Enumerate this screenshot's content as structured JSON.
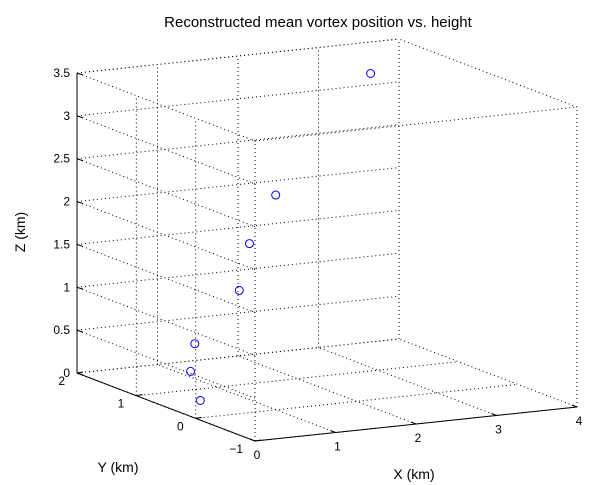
{
  "chart_data": {
    "type": "scatter",
    "projection": "3d",
    "title": "Reconstructed mean vortex position vs. height",
    "xlabel": "X (km)",
    "ylabel": "Y (km)",
    "zlabel": "Z (km)",
    "xlim": [
      0,
      4
    ],
    "ylim": [
      -1,
      2
    ],
    "zlim": [
      0,
      3.5
    ],
    "xticks": [
      "0",
      "1",
      "2",
      "3",
      "4"
    ],
    "yticks": [
      "−1",
      "0",
      "1",
      "2"
    ],
    "zticks": [
      "0",
      "0.5",
      "1",
      "1.5",
      "2",
      "2.5",
      "3",
      "3.5"
    ],
    "grid": true,
    "box": true,
    "marker": "circle-open",
    "color": "#0000ff",
    "points": [
      {
        "x": 0.5,
        "y": 0.6,
        "z": 0.0
      },
      {
        "x": 0.6,
        "y": 0.9,
        "z": 0.25
      },
      {
        "x": 0.8,
        "y": 1.1,
        "z": 0.5
      },
      {
        "x": 1.5,
        "y": 1.3,
        "z": 1.0
      },
      {
        "x": 1.7,
        "y": 1.4,
        "z": 1.5
      },
      {
        "x": 2.1,
        "y": 1.5,
        "z": 2.0
      },
      {
        "x": 3.5,
        "y": 1.8,
        "z": 3.2
      }
    ]
  }
}
